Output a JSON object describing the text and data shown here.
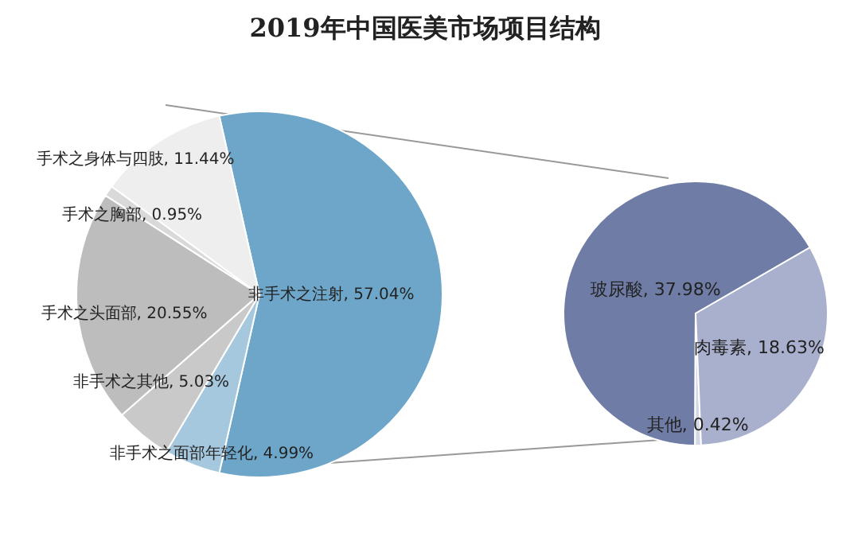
{
  "chart_data": [
    {
      "type": "pie",
      "title": "2019年中国医美市场项目结构",
      "categories": [
        "非手术之注射",
        "非手术之面部年轻化",
        "非手术之其他",
        "手术之头面部",
        "手术之胸部",
        "手术之身体与四肢"
      ],
      "values": [
        57.04,
        4.99,
        5.03,
        20.55,
        0.95,
        11.44
      ],
      "value_labels": [
        "57.04%",
        "4.99%",
        "5.03%",
        "20.55%",
        "0.95%",
        "11.44%"
      ],
      "colors": [
        "#6ea6c9",
        "#a6c8de",
        "#c9c9c9",
        "#bdbdbd",
        "#d9d9d9",
        "#eeeeee"
      ]
    },
    {
      "type": "pie",
      "categories": [
        "玻尿酸",
        "其他",
        "肉毒素"
      ],
      "values": [
        37.98,
        0.42,
        18.63
      ],
      "value_labels": [
        "37.98%",
        "0.42%",
        "18.63%"
      ],
      "colors": [
        "#6f7da6",
        "#d3d7e6",
        "#a9b0cd"
      ]
    }
  ]
}
